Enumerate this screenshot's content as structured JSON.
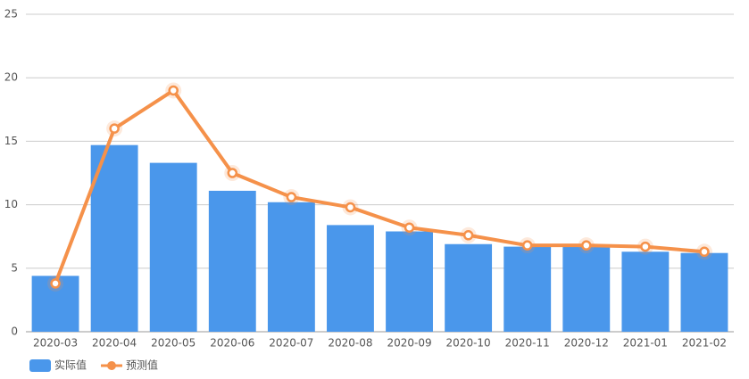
{
  "chart_data": {
    "type": "bar",
    "categories": [
      "2020-03",
      "2020-04",
      "2020-05",
      "2020-06",
      "2020-07",
      "2020-08",
      "2020-09",
      "2020-10",
      "2020-11",
      "2020-12",
      "2021-01",
      "2021-02"
    ],
    "series": [
      {
        "name": "实际值",
        "type": "bar",
        "color": "#4a97eb",
        "values": [
          4.4,
          14.7,
          13.3,
          11.1,
          10.2,
          8.4,
          7.9,
          6.9,
          6.7,
          6.7,
          6.3,
          6.2
        ]
      },
      {
        "name": "预测值",
        "type": "line",
        "color": "#f5914a",
        "values": [
          3.8,
          16.0,
          19.0,
          12.5,
          10.6,
          9.8,
          8.2,
          7.6,
          6.8,
          6.8,
          6.7,
          6.3
        ]
      }
    ],
    "ylim": [
      0,
      25
    ],
    "yticks": [
      0,
      5,
      10,
      15,
      20,
      25
    ],
    "grid": true,
    "legend": "bottom-left"
  }
}
